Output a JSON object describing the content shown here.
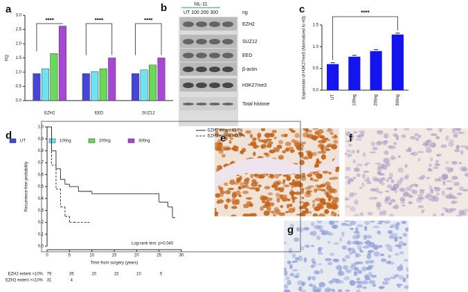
{
  "panel_labels": [
    "a",
    "b",
    "c",
    "d",
    "e",
    "f",
    "g"
  ],
  "blot": {
    "treatment": "hIL-11",
    "lanes": "UT 100 200 300",
    "unit": "ng",
    "bands": [
      "EZH2",
      "SUZ12",
      "EED",
      "β-actin",
      "H3K27me3",
      "Total histone"
    ]
  },
  "chart_data": [
    {
      "type": "bar",
      "ylabel": "RQ",
      "categories": [
        "EZH2",
        "EED",
        "SUZ12"
      ],
      "series": [
        {
          "name": "UT",
          "color": "#4545dd",
          "values": [
            0.95,
            0.95,
            0.95
          ]
        },
        {
          "name": "100ng",
          "color": "#6fe3f2",
          "values": [
            1.12,
            1.02,
            1.08
          ]
        },
        {
          "name": "200ng",
          "color": "#6ad85a",
          "values": [
            1.65,
            1.12,
            1.25
          ]
        },
        {
          "name": "300ng",
          "color": "#a847d6",
          "values": [
            2.62,
            1.5,
            1.5
          ]
        }
      ],
      "ylim": [
        0,
        3
      ],
      "yticks": [
        {
          "value": 0,
          "label": "0.0"
        },
        0.5,
        {
          "value": 1,
          "label": "1.0"
        },
        1.5,
        {
          "value": 2,
          "label": "2.0"
        },
        2.5,
        {
          "value": 3,
          "label": "3.0"
        }
      ],
      "annotations": [
        "****",
        "****",
        "****"
      ]
    },
    {
      "type": "bar",
      "ylabel": "Expression of H3K27me3 (Normalized to H3)",
      "categories": [
        "UT",
        "100ng",
        "200ng",
        "300ng"
      ],
      "values": [
        0.6,
        0.77,
        0.9,
        1.28
      ],
      "color": "#1414ee",
      "ylim": [
        0,
        1.5
      ],
      "yticks": [
        {
          "value": 0,
          "label": "0.0"
        },
        0.5,
        {
          "value": 1,
          "label": "1.0"
        },
        1.5
      ],
      "annotations": [
        "****"
      ]
    },
    {
      "type": "line",
      "xlabel": "Time from surgery (years)",
      "ylabel": "Recurrence-free probability",
      "series": [
        {
          "name": "EZH2 extent <10%",
          "dash": "solid",
          "color": "#222222",
          "x": [
            0,
            1,
            2,
            3,
            4,
            5,
            7,
            10,
            15,
            20,
            25,
            27,
            28
          ],
          "values": [
            1,
            0.8,
            0.65,
            0.56,
            0.52,
            0.5,
            0.46,
            0.44,
            0.44,
            0.44,
            0.37,
            0.33,
            0.24
          ]
        },
        {
          "name": "EZH2 extent >=10%",
          "dash": "dashed",
          "color": "#222222",
          "x": [
            0,
            1,
            2,
            3,
            4,
            5,
            6,
            9
          ],
          "values": [
            1,
            0.68,
            0.48,
            0.33,
            0.25,
            0.2,
            0.2,
            0.2
          ]
        }
      ],
      "xlim": [
        0,
        30
      ],
      "xticks": [
        0,
        5,
        10,
        15,
        20,
        25,
        30
      ],
      "ylim": [
        0,
        1
      ],
      "yticks": [
        {
          "value": 0,
          "label": "0.0"
        },
        0.1,
        0.2,
        0.3,
        0.4,
        0.5,
        0.6,
        0.7,
        0.8,
        0.9,
        {
          "value": 1,
          "label": "1.0"
        }
      ],
      "legend": "top-right",
      "annotation": "Log-rank test: p=0.040",
      "risk_table": [
        {
          "label": "EZH2 extent <10%",
          "counts": [
            "79",
            "35",
            "20",
            "15",
            "10",
            "5"
          ]
        },
        {
          "label": "EZH2 extent >=10%",
          "counts": [
            "31",
            "4"
          ]
        }
      ]
    }
  ]
}
